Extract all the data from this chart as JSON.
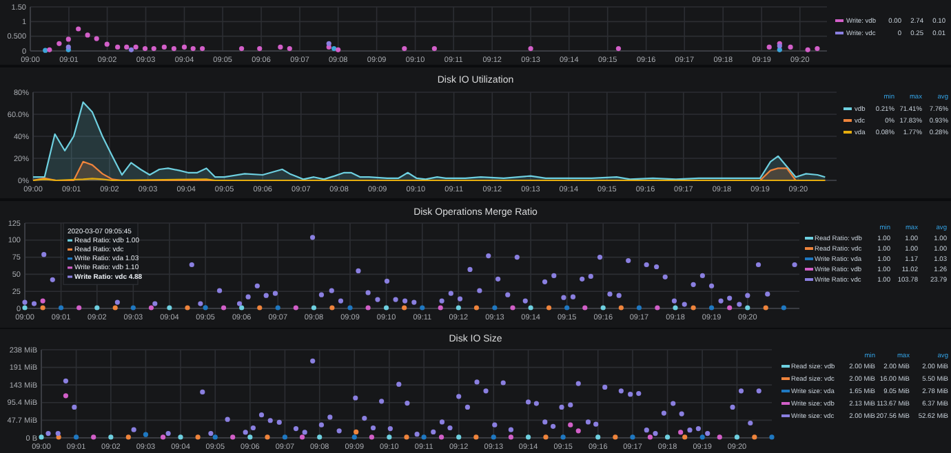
{
  "chart_data": [
    {
      "type": "scatter",
      "marker": "circle",
      "grid": true,
      "legend": "right",
      "xlim": [
        9,
        9.345
      ],
      "ylim": [
        0,
        1.5
      ],
      "xticks": [
        {
          "value": 9,
          "label": "09:00"
        },
        {
          "value": 9.0167,
          "label": "09:01"
        },
        {
          "value": 9.0333,
          "label": "09:02"
        },
        {
          "value": 9.05,
          "label": "09:03"
        },
        {
          "value": 9.0667,
          "label": "09:04"
        },
        {
          "value": 9.0833,
          "label": "09:05"
        },
        {
          "value": 9.1,
          "label": "09:06"
        },
        {
          "value": 9.1167,
          "label": "09:07"
        },
        {
          "value": 9.1333,
          "label": "09:08"
        },
        {
          "value": 9.15,
          "label": "09:09"
        },
        {
          "value": 9.1667,
          "label": "09:10"
        },
        {
          "value": 9.1833,
          "label": "09:11"
        },
        {
          "value": 9.2,
          "label": "09:12"
        },
        {
          "value": 9.2167,
          "label": "09:13"
        },
        {
          "value": 9.2333,
          "label": "09:14"
        },
        {
          "value": 9.25,
          "label": "09:15"
        },
        {
          "value": 9.2667,
          "label": "09:16"
        },
        {
          "value": 9.2833,
          "label": "09:17"
        },
        {
          "value": 9.3,
          "label": "09:18"
        },
        {
          "value": 9.3167,
          "label": "09:19"
        },
        {
          "value": 9.3333,
          "label": "09:20"
        }
      ],
      "yticks": [
        0,
        {
          "value": 0.5,
          "label": "0.500"
        },
        1,
        {
          "value": 1.5,
          "label": "1.50"
        }
      ],
      "series": [
        {
          "color": "#3da5d9",
          "x": [
            9.0065,
            9.0165,
            9.1315,
            9.3245
          ],
          "values": [
            0.02,
            0.04,
            0.08,
            0.04
          ]
        },
        {
          "name": "Write: vdb",
          "color": "#d25fc8",
          "x": [
            9.0083,
            9.0125,
            9.0165,
            9.0208,
            9.0248,
            9.0287,
            9.0332,
            9.0378,
            9.0417,
            9.0457,
            9.0497,
            9.0535,
            9.058,
            9.0622,
            9.0667,
            9.0705,
            9.0745,
            9.0915,
            9.0993,
            9.1083,
            9.1123,
            9.1293,
            9.1333,
            9.162,
            9.175,
            9.2167,
            9.2547,
            9.32,
            9.3245,
            9.3292,
            9.3367,
            9.3408
          ],
          "values": [
            0.04,
            0.25,
            0.4,
            0.75,
            0.54,
            0.42,
            0.23,
            0.13,
            0.13,
            0.13,
            0.08,
            0.08,
            0.13,
            0.08,
            0.13,
            0.08,
            0.08,
            0.08,
            0.08,
            0.13,
            0.08,
            0.13,
            0.04,
            0.08,
            0.08,
            0.08,
            0.08,
            0.13,
            0.25,
            0.13,
            0.04,
            0.08
          ]
        },
        {
          "name": "Write: vdc",
          "color": "#8a7fe0",
          "x": [
            9.0165,
            9.0437,
            9.1293,
            9.3245
          ],
          "values": [
            0.13,
            0.04,
            0.25,
            0.17
          ]
        }
      ],
      "annotations": [
        "0.00",
        "2.74",
        "0.10",
        "0",
        "0.25",
        "0.01"
      ]
    },
    {
      "type": "area",
      "title": "Disk IO Utilization",
      "grid": true,
      "legend": "right",
      "xlim": [
        9,
        9.35
      ],
      "ylim": [
        0,
        80
      ],
      "xticks": [
        {
          "value": 9,
          "label": "09:00"
        },
        {
          "value": 9.0167,
          "label": "09:01"
        },
        {
          "value": 9.0333,
          "label": "09:02"
        },
        {
          "value": 9.05,
          "label": "09:03"
        },
        {
          "value": 9.0667,
          "label": "09:04"
        },
        {
          "value": 9.0833,
          "label": "09:05"
        },
        {
          "value": 9.1,
          "label": "09:06"
        },
        {
          "value": 9.1167,
          "label": "09:07"
        },
        {
          "value": 9.1333,
          "label": "09:08"
        },
        {
          "value": 9.15,
          "label": "09:09"
        },
        {
          "value": 9.1667,
          "label": "09:10"
        },
        {
          "value": 9.1833,
          "label": "09:11"
        },
        {
          "value": 9.2,
          "label": "09:12"
        },
        {
          "value": 9.2167,
          "label": "09:13"
        },
        {
          "value": 9.2333,
          "label": "09:14"
        },
        {
          "value": 9.25,
          "label": "09:15"
        },
        {
          "value": 9.2667,
          "label": "09:16"
        },
        {
          "value": 9.2833,
          "label": "09:17"
        },
        {
          "value": 9.3,
          "label": "09:18"
        },
        {
          "value": 9.3167,
          "label": "09:19"
        },
        {
          "value": 9.3333,
          "label": "09:20"
        }
      ],
      "yticks": [
        {
          "value": 0,
          "label": "0%"
        },
        {
          "value": 20,
          "label": "20%"
        },
        {
          "value": 40,
          "label": "40%"
        },
        {
          "value": 60,
          "label": "60.0%"
        },
        {
          "value": 80,
          "label": "80%"
        }
      ],
      "series": [
        {
          "name": "vdb",
          "color": "#6ed0e0",
          "x": [
            9,
            9.005,
            9.0095,
            9.0138,
            9.0177,
            9.0218,
            9.0258,
            9.0302,
            9.0345,
            9.0387,
            9.0427,
            9.0468,
            9.0508,
            9.055,
            9.0588,
            9.0637,
            9.0675,
            9.0715,
            9.0755,
            9.0793,
            9.0833,
            9.0922,
            9.1,
            9.1085,
            9.1118,
            9.1178,
            9.1223,
            9.1267,
            9.1313,
            9.1355,
            9.1385,
            9.1425,
            9.1463,
            9.1543,
            9.1592,
            9.1632,
            9.167,
            9.171,
            9.176,
            9.1798,
            9.1883,
            9.195,
            9.205,
            9.2167,
            9.2233,
            9.2333,
            9.2433,
            9.2542,
            9.26,
            9.27,
            9.28,
            9.29,
            9.3,
            9.3167,
            9.3212,
            9.3245,
            9.3322,
            9.3367,
            9.3417,
            9.345
          ],
          "values": [
            3,
            3,
            42,
            27,
            40,
            71,
            62,
            40,
            22,
            5,
            16,
            10,
            5,
            10,
            11,
            9,
            7,
            7,
            11,
            3,
            3,
            6,
            5,
            10,
            6,
            1,
            3,
            1,
            4,
            7,
            7,
            3,
            3,
            2,
            2,
            7,
            2,
            1,
            3,
            2,
            2,
            3,
            2,
            4,
            2,
            2,
            2,
            3,
            1,
            2,
            1,
            2,
            2,
            2,
            17,
            22,
            3,
            6,
            5,
            3
          ]
        },
        {
          "name": "vdc",
          "color": "#ef843c",
          "x": [
            9,
            9.005,
            9.01,
            9.0177,
            9.0218,
            9.0258,
            9.0302,
            9.0345,
            9.0387,
            9.3167,
            9.3212,
            9.3245,
            9.3283,
            9.3322,
            9.345
          ],
          "values": [
            0,
            2,
            0,
            0,
            17,
            14,
            6,
            1,
            0,
            0,
            9,
            11,
            11,
            0,
            0
          ]
        },
        {
          "name": "vda",
          "color": "#e5ac0e",
          "x": [
            9,
            9.005,
            9.01,
            9.0218,
            9.0258,
            9.0302,
            9.0345,
            9.0755,
            9.0793,
            9.345
          ],
          "values": [
            0,
            1,
            0,
            1,
            1.7,
            1,
            0,
            1,
            0,
            0
          ]
        }
      ],
      "annotations": [
        "min",
        "max",
        "avg",
        "0.21%",
        "71.41%",
        "7.76%",
        "0%",
        "17.83%",
        "0.93%",
        "0.08%",
        "1.77%",
        "0.28%"
      ]
    },
    {
      "type": "scatter",
      "marker": "circle",
      "title": "Disk Operations Merge Ratio",
      "grid": true,
      "legend": "right",
      "xlim": [
        9,
        9.3572
      ],
      "ylim": [
        0,
        125
      ],
      "xticks": [
        {
          "value": 9,
          "label": "09:00"
        },
        {
          "value": 9.0167,
          "label": "09:01"
        },
        {
          "value": 9.0333,
          "label": "09:02"
        },
        {
          "value": 9.05,
          "label": "09:03"
        },
        {
          "value": 9.0667,
          "label": "09:04"
        },
        {
          "value": 9.0833,
          "label": "09:05"
        },
        {
          "value": 9.1,
          "label": "09:06"
        },
        {
          "value": 9.1167,
          "label": "09:07"
        },
        {
          "value": 9.1333,
          "label": "09:08"
        },
        {
          "value": 9.15,
          "label": "09:09"
        },
        {
          "value": 9.1667,
          "label": "09:10"
        },
        {
          "value": 9.1833,
          "label": "09:11"
        },
        {
          "value": 9.2,
          "label": "09:12"
        },
        {
          "value": 9.2167,
          "label": "09:13"
        },
        {
          "value": 9.2333,
          "label": "09:14"
        },
        {
          "value": 9.25,
          "label": "09:15"
        },
        {
          "value": 9.2667,
          "label": "09:16"
        },
        {
          "value": 9.2833,
          "label": "09:17"
        },
        {
          "value": 9.3,
          "label": "09:18"
        },
        {
          "value": 9.3167,
          "label": "09:19"
        },
        {
          "value": 9.3333,
          "label": "09:20"
        }
      ],
      "yticks": [
        0,
        25,
        50,
        75,
        100,
        125
      ],
      "series": [
        {
          "name": "Read Ratio: vdb",
          "color": "#6ed0e0",
          "x": [
            9,
            9.0333,
            9.0667,
            9.1,
            9.1333,
            9.1667,
            9.2,
            9.2333,
            9.2667,
            9.3,
            9.3333
          ],
          "values": [
            1,
            1,
            1,
            1,
            1,
            1,
            1,
            1,
            1,
            1,
            1
          ]
        },
        {
          "name": "Read Ratio: vdc",
          "color": "#ef843c",
          "x": [
            9.0083,
            9.0417,
            9.075,
            9.1083,
            9.1417,
            9.175,
            9.2083,
            9.2417,
            9.275,
            9.3083,
            9.3417
          ],
          "values": [
            1,
            1,
            1,
            1,
            1,
            1,
            1,
            1,
            1,
            1,
            1
          ]
        },
        {
          "name": "Write Ratio: vda",
          "color": "#1f78c1",
          "x": [
            9.0167,
            9.05,
            9.0833,
            9.1167,
            9.15,
            9.1833,
            9.2167,
            9.25,
            9.2833,
            9.3167,
            9.35
          ],
          "values": [
            1,
            1,
            1.17,
            1,
            1,
            1,
            1,
            1,
            1,
            1,
            1
          ]
        },
        {
          "name": "Write Ratio: vdb",
          "color": "#d25fc8",
          "x": [
            9.0083,
            9.025,
            9.0583,
            9.0917,
            9.125,
            9.1583,
            9.1917,
            9.225,
            9.2583,
            9.2917,
            9.325
          ],
          "values": [
            11,
            1,
            1,
            1,
            1,
            1,
            1,
            1,
            1,
            1,
            1
          ]
        },
        {
          "name": "Write Ratio: vdc",
          "color": "#8a7fe0",
          "x": [
            9,
            9.0043,
            9.0088,
            9.0128,
            9.0427,
            9.06,
            9.077,
            9.081,
            9.0898,
            9.099,
            9.103,
            9.1072,
            9.1113,
            9.1155,
            9.1327,
            9.1368,
            9.1415,
            9.1457,
            9.1538,
            9.1583,
            9.1627,
            9.167,
            9.171,
            9.1753,
            9.1795,
            9.1923,
            9.1965,
            9.2007,
            9.2053,
            9.2097,
            9.2138,
            9.2182,
            9.2227,
            9.227,
            9.2308,
            9.2398,
            9.244,
            9.2485,
            9.2528,
            9.257,
            9.261,
            9.2652,
            9.2698,
            9.274,
            9.2783,
            9.2867,
            9.2913,
            9.2953,
            9.2995,
            9.3042,
            9.3083,
            9.3125,
            9.3167,
            9.321,
            9.325,
            9.3295,
            9.3333,
            9.3383,
            9.3425,
            9.355
          ],
          "values": [
            9,
            7,
            79,
            42,
            9,
            7,
            64,
            7,
            26,
            7,
            17,
            33,
            19,
            22,
            104,
            20,
            26,
            11,
            55,
            23,
            13,
            40,
            13,
            11,
            9,
            11,
            22,
            14,
            57,
            26,
            77,
            43,
            20,
            75,
            11,
            39,
            48,
            16,
            17,
            43,
            47,
            75,
            21,
            19,
            70,
            64,
            61,
            46,
            11,
            6,
            35,
            48,
            33,
            11,
            15,
            6,
            19,
            64,
            21,
            64
          ]
        }
      ],
      "annotations": [
        "min",
        "max",
        "avg",
        "1.00",
        "1.00",
        "1.00",
        "1.00",
        "1.00",
        "1.00",
        "1.00",
        "1.17",
        "1.03",
        "1.00",
        "11.02",
        "1.26",
        "1.00",
        "103.78",
        "23.79",
        "2020-03-07 09:05:45",
        "Read Ratio: vdb 1.00",
        "Read Ratio: vdc",
        "Write Ratio: vda 1.03",
        "Write Ratio: vdb 1.10",
        "Write Ratio: vdc 4.88"
      ]
    },
    {
      "type": "scatter",
      "marker": "circle",
      "title": "Disk IO Size",
      "grid": true,
      "legend": "right",
      "xlim": [
        9,
        9.35
      ],
      "ylim": [
        0,
        238.4
      ],
      "xticks": [
        {
          "value": 9,
          "label": "09:00"
        },
        {
          "value": 9.0167,
          "label": "09:01"
        },
        {
          "value": 9.0333,
          "label": "09:02"
        },
        {
          "value": 9.05,
          "label": "09:03"
        },
        {
          "value": 9.0667,
          "label": "09:04"
        },
        {
          "value": 9.0833,
          "label": "09:05"
        },
        {
          "value": 9.1,
          "label": "09:06"
        },
        {
          "value": 9.1167,
          "label": "09:07"
        },
        {
          "value": 9.1333,
          "label": "09:08"
        },
        {
          "value": 9.15,
          "label": "09:09"
        },
        {
          "value": 9.1667,
          "label": "09:10"
        },
        {
          "value": 9.1833,
          "label": "09:11"
        },
        {
          "value": 9.2,
          "label": "09:12"
        },
        {
          "value": 9.2167,
          "label": "09:13"
        },
        {
          "value": 9.2333,
          "label": "09:14"
        },
        {
          "value": 9.25,
          "label": "09:15"
        },
        {
          "value": 9.2667,
          "label": "09:16"
        },
        {
          "value": 9.2833,
          "label": "09:17"
        },
        {
          "value": 9.3,
          "label": "09:18"
        },
        {
          "value": 9.3167,
          "label": "09:19"
        },
        {
          "value": 9.3333,
          "label": "09:20"
        }
      ],
      "yticks": [
        {
          "value": 0,
          "label": "0 B"
        },
        {
          "value": 47.7,
          "label": "47.7 MiB"
        },
        {
          "value": 95.4,
          "label": "95.4 MiB"
        },
        {
          "value": 143.1,
          "label": "143 MiB"
        },
        {
          "value": 190.7,
          "label": "191 MiB"
        },
        {
          "value": 238.4,
          "label": "238 MiB"
        }
      ],
      "series": [
        {
          "name": "Read size: vdb",
          "color": "#6ed0e0",
          "x": [
            9,
            9.0333,
            9.0667,
            9.1,
            9.1333,
            9.1667,
            9.2,
            9.2333,
            9.2667,
            9.3,
            9.3333
          ],
          "values": [
            2,
            2,
            2,
            2,
            2,
            2,
            2,
            2,
            2,
            2,
            2
          ]
        },
        {
          "name": "Read size: vdc",
          "color": "#ef843c",
          "x": [
            9.0083,
            9.0417,
            9.075,
            9.1083,
            9.1508,
            9.175,
            9.2083,
            9.2417,
            9.275,
            9.3083,
            9.3417
          ],
          "values": [
            2,
            2,
            2,
            2,
            16,
            2,
            2,
            2,
            2,
            2,
            2
          ]
        },
        {
          "name": "Write size: vda",
          "color": "#1f78c1",
          "x": [
            9.0167,
            9.05,
            9.0833,
            9.1167,
            9.15,
            9.1833,
            9.2167,
            9.25,
            9.2833,
            9.3167,
            9.35
          ],
          "values": [
            2,
            9,
            2,
            2,
            2,
            2,
            2,
            2,
            2,
            2,
            2
          ]
        },
        {
          "name": "Write size: vdb",
          "color": "#d25fc8",
          "x": [
            9.0117,
            9.025,
            9.0583,
            9.0917,
            9.125,
            9.1583,
            9.1917,
            9.225,
            9.2535,
            9.2573,
            9.2917,
            9.3063,
            9.325
          ],
          "values": [
            114,
            2,
            2,
            2,
            2,
            2,
            2,
            2,
            35,
            19,
            2,
            15,
            2
          ]
        },
        {
          "name": "Write size: vdc",
          "color": "#8a7fe0",
          "x": [
            9.0033,
            9.008,
            9.0117,
            9.0158,
            9.0443,
            9.0608,
            9.0772,
            9.0812,
            9.0892,
            9.0978,
            9.1015,
            9.1055,
            9.1097,
            9.114,
            9.122,
            9.1262,
            9.13,
            9.1342,
            9.1383,
            9.1427,
            9.1505,
            9.1548,
            9.159,
            9.163,
            9.1672,
            9.1713,
            9.1753,
            9.18,
            9.1878,
            9.192,
            9.1958,
            9.2,
            9.2042,
            9.2087,
            9.213,
            9.2172,
            9.2213,
            9.225,
            9.2333,
            9.2372,
            9.2413,
            9.2452,
            9.2493,
            9.2535,
            9.2573,
            9.262,
            9.2657,
            9.27,
            9.2778,
            9.2822,
            9.2862,
            9.29,
            9.2942,
            9.2983,
            9.3027,
            9.3068,
            9.3107,
            9.3148,
            9.3192,
            9.3312,
            9.3353,
            9.3397,
            9.3438
          ],
          "values": [
            12,
            12,
            154,
            83,
            22,
            12,
            124,
            12,
            50,
            15,
            27,
            62,
            47,
            42,
            25,
            15,
            208,
            35,
            56,
            19,
            108,
            53,
            27,
            99,
            25,
            145,
            94,
            10,
            16,
            43,
            27,
            112,
            83,
            151,
            127,
            35,
            149,
            22,
            97,
            93,
            43,
            31,
            83,
            89,
            147,
            43,
            37,
            137,
            127,
            118,
            120,
            21,
            12,
            67,
            93,
            65,
            21,
            25,
            12,
            83,
            127,
            40,
            127
          ]
        }
      ],
      "annotations": [
        "min",
        "max",
        "avg",
        "2.00 MiB",
        "2.00 MiB",
        "2.00 MiB",
        "2.00 MiB",
        "16.00 MiB",
        "5.50 MiB",
        "1.65 MiB",
        "9.05 MiB",
        "2.78 MiB",
        "2.13 MiB",
        "113.67 MiB",
        "6.37 MiB",
        "2.00 MiB",
        "207.56 MiB",
        "52.62 MiB"
      ]
    }
  ]
}
